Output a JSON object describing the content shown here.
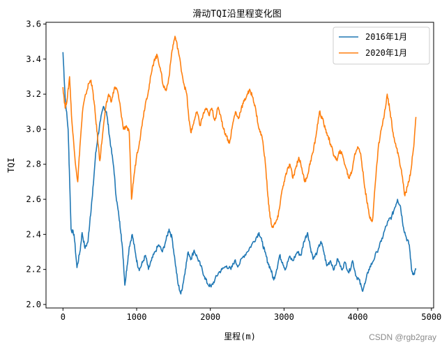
{
  "chart_data": {
    "type": "line",
    "title": "滑动TQI沿里程变化图",
    "xlabel": "里程(m)",
    "ylabel": "TQI",
    "xlim": [
      -230,
      5030
    ],
    "ylim": [
      1.98,
      3.61
    ],
    "xticks": [
      0,
      1000,
      2000,
      3000,
      4000,
      5000
    ],
    "yticks": [
      2.0,
      2.2,
      2.4,
      2.6,
      2.8,
      3.0,
      3.2,
      3.4,
      3.6
    ],
    "ytick_labels": [
      "2.0",
      "2.2",
      "2.4",
      "2.6",
      "2.8",
      "3.0",
      "3.2",
      "3.4",
      "3.6"
    ],
    "grid": false,
    "legend_position": "upper right",
    "series": [
      {
        "name": "2016年1月",
        "color": "#1f77b4",
        "points": [
          [
            0,
            3.44
          ],
          [
            30,
            3.18
          ],
          [
            70,
            3.0
          ],
          [
            90,
            2.72
          ],
          [
            110,
            2.43
          ],
          [
            150,
            2.4
          ],
          [
            190,
            2.21
          ],
          [
            230,
            2.3
          ],
          [
            260,
            2.41
          ],
          [
            300,
            2.32
          ],
          [
            340,
            2.36
          ],
          [
            370,
            2.5
          ],
          [
            400,
            2.62
          ],
          [
            440,
            2.84
          ],
          [
            470,
            2.95
          ],
          [
            510,
            3.05
          ],
          [
            550,
            3.13
          ],
          [
            590,
            3.1
          ],
          [
            620,
            3.0
          ],
          [
            650,
            2.9
          ],
          [
            690,
            2.78
          ],
          [
            720,
            2.62
          ],
          [
            760,
            2.5
          ],
          [
            790,
            2.4
          ],
          [
            820,
            2.25
          ],
          [
            840,
            2.11
          ],
          [
            870,
            2.22
          ],
          [
            900,
            2.33
          ],
          [
            940,
            2.4
          ],
          [
            980,
            2.3
          ],
          [
            1010,
            2.23
          ],
          [
            1040,
            2.2
          ],
          [
            1080,
            2.24
          ],
          [
            1120,
            2.28
          ],
          [
            1160,
            2.2
          ],
          [
            1200,
            2.25
          ],
          [
            1250,
            2.3
          ],
          [
            1300,
            2.34
          ],
          [
            1350,
            2.3
          ],
          [
            1400,
            2.37
          ],
          [
            1440,
            2.43
          ],
          [
            1480,
            2.38
          ],
          [
            1520,
            2.25
          ],
          [
            1560,
            2.12
          ],
          [
            1600,
            2.06
          ],
          [
            1630,
            2.12
          ],
          [
            1660,
            2.2
          ],
          [
            1700,
            2.3
          ],
          [
            1740,
            2.26
          ],
          [
            1780,
            2.31
          ],
          [
            1830,
            2.26
          ],
          [
            1870,
            2.22
          ],
          [
            1920,
            2.16
          ],
          [
            1960,
            2.12
          ],
          [
            2010,
            2.1
          ],
          [
            2060,
            2.14
          ],
          [
            2110,
            2.18
          ],
          [
            2160,
            2.2
          ],
          [
            2220,
            2.22
          ],
          [
            2280,
            2.2
          ],
          [
            2330,
            2.25
          ],
          [
            2380,
            2.22
          ],
          [
            2440,
            2.27
          ],
          [
            2500,
            2.3
          ],
          [
            2560,
            2.34
          ],
          [
            2620,
            2.38
          ],
          [
            2660,
            2.41
          ],
          [
            2700,
            2.36
          ],
          [
            2740,
            2.3
          ],
          [
            2780,
            2.24
          ],
          [
            2820,
            2.2
          ],
          [
            2860,
            2.14
          ],
          [
            2900,
            2.2
          ],
          [
            2940,
            2.28
          ],
          [
            2980,
            2.24
          ],
          [
            3020,
            2.2
          ],
          [
            3070,
            2.27
          ],
          [
            3120,
            2.25
          ],
          [
            3180,
            2.3
          ],
          [
            3230,
            2.28
          ],
          [
            3270,
            2.36
          ],
          [
            3320,
            2.41
          ],
          [
            3360,
            2.32
          ],
          [
            3400,
            2.26
          ],
          [
            3450,
            2.3
          ],
          [
            3500,
            2.36
          ],
          [
            3540,
            2.3
          ],
          [
            3580,
            2.22
          ],
          [
            3630,
            2.25
          ],
          [
            3680,
            2.2
          ],
          [
            3730,
            2.26
          ],
          [
            3780,
            2.2
          ],
          [
            3830,
            2.24
          ],
          [
            3880,
            2.18
          ],
          [
            3930,
            2.25
          ],
          [
            3980,
            2.16
          ],
          [
            4020,
            2.14
          ],
          [
            4060,
            2.08
          ],
          [
            4100,
            2.12
          ],
          [
            4150,
            2.2
          ],
          [
            4200,
            2.24
          ],
          [
            4260,
            2.3
          ],
          [
            4320,
            2.36
          ],
          [
            4370,
            2.43
          ],
          [
            4420,
            2.48
          ],
          [
            4460,
            2.5
          ],
          [
            4500,
            2.55
          ],
          [
            4540,
            2.6
          ],
          [
            4580,
            2.56
          ],
          [
            4620,
            2.44
          ],
          [
            4660,
            2.38
          ],
          [
            4700,
            2.34
          ],
          [
            4730,
            2.2
          ],
          [
            4760,
            2.17
          ],
          [
            4790,
            2.2
          ]
        ]
      },
      {
        "name": "2020年1月",
        "color": "#ff7f0e",
        "points": [
          [
            0,
            3.24
          ],
          [
            30,
            3.12
          ],
          [
            60,
            3.18
          ],
          [
            90,
            3.3
          ],
          [
            120,
            3.05
          ],
          [
            160,
            2.85
          ],
          [
            200,
            2.7
          ],
          [
            230,
            2.9
          ],
          [
            270,
            3.12
          ],
          [
            310,
            3.2
          ],
          [
            350,
            3.26
          ],
          [
            380,
            3.28
          ],
          [
            410,
            3.2
          ],
          [
            440,
            3.08
          ],
          [
            470,
            2.95
          ],
          [
            500,
            2.82
          ],
          [
            540,
            2.98
          ],
          [
            580,
            3.12
          ],
          [
            620,
            3.2
          ],
          [
            660,
            3.16
          ],
          [
            700,
            3.24
          ],
          [
            740,
            3.22
          ],
          [
            780,
            3.12
          ],
          [
            820,
            3.0
          ],
          [
            860,
            3.02
          ],
          [
            900,
            2.98
          ],
          [
            930,
            2.6
          ],
          [
            960,
            2.72
          ],
          [
            1000,
            2.85
          ],
          [
            1040,
            2.93
          ],
          [
            1080,
            3.05
          ],
          [
            1120,
            3.15
          ],
          [
            1160,
            3.22
          ],
          [
            1200,
            3.32
          ],
          [
            1240,
            3.4
          ],
          [
            1280,
            3.42
          ],
          [
            1320,
            3.35
          ],
          [
            1360,
            3.25
          ],
          [
            1400,
            3.22
          ],
          [
            1440,
            3.3
          ],
          [
            1480,
            3.45
          ],
          [
            1520,
            3.53
          ],
          [
            1560,
            3.46
          ],
          [
            1600,
            3.36
          ],
          [
            1640,
            3.26
          ],
          [
            1680,
            3.2
          ],
          [
            1710,
            3.05
          ],
          [
            1740,
            2.98
          ],
          [
            1780,
            3.05
          ],
          [
            1820,
            3.1
          ],
          [
            1860,
            3.02
          ],
          [
            1900,
            3.08
          ],
          [
            1940,
            3.12
          ],
          [
            1980,
            3.08
          ],
          [
            2020,
            3.12
          ],
          [
            2060,
            3.05
          ],
          [
            2100,
            3.12
          ],
          [
            2140,
            3.08
          ],
          [
            2180,
            3.0
          ],
          [
            2220,
            2.96
          ],
          [
            2260,
            2.92
          ],
          [
            2300,
            3.02
          ],
          [
            2340,
            3.1
          ],
          [
            2380,
            3.06
          ],
          [
            2420,
            3.12
          ],
          [
            2460,
            3.16
          ],
          [
            2500,
            3.2
          ],
          [
            2540,
            3.22
          ],
          [
            2580,
            3.18
          ],
          [
            2620,
            3.1
          ],
          [
            2660,
            3.0
          ],
          [
            2700,
            2.96
          ],
          [
            2740,
            2.84
          ],
          [
            2780,
            2.62
          ],
          [
            2810,
            2.5
          ],
          [
            2840,
            2.44
          ],
          [
            2880,
            2.46
          ],
          [
            2920,
            2.5
          ],
          [
            2960,
            2.62
          ],
          [
            3000,
            2.7
          ],
          [
            3040,
            2.76
          ],
          [
            3080,
            2.8
          ],
          [
            3120,
            2.72
          ],
          [
            3160,
            2.78
          ],
          [
            3200,
            2.84
          ],
          [
            3240,
            2.78
          ],
          [
            3280,
            2.7
          ],
          [
            3320,
            2.74
          ],
          [
            3360,
            2.82
          ],
          [
            3400,
            2.88
          ],
          [
            3440,
            2.98
          ],
          [
            3480,
            3.1
          ],
          [
            3520,
            3.06
          ],
          [
            3560,
            3.0
          ],
          [
            3600,
            2.96
          ],
          [
            3640,
            2.9
          ],
          [
            3680,
            2.85
          ],
          [
            3720,
            2.82
          ],
          [
            3760,
            2.88
          ],
          [
            3800,
            2.84
          ],
          [
            3840,
            2.78
          ],
          [
            3880,
            2.72
          ],
          [
            3920,
            2.76
          ],
          [
            3960,
            2.86
          ],
          [
            4000,
            2.9
          ],
          [
            4040,
            2.86
          ],
          [
            4080,
            2.72
          ],
          [
            4120,
            2.6
          ],
          [
            4160,
            2.5
          ],
          [
            4200,
            2.48
          ],
          [
            4240,
            2.7
          ],
          [
            4280,
            2.9
          ],
          [
            4320,
            3.0
          ],
          [
            4360,
            3.08
          ],
          [
            4400,
            3.2
          ],
          [
            4440,
            3.1
          ],
          [
            4480,
            2.98
          ],
          [
            4520,
            2.9
          ],
          [
            4560,
            2.84
          ],
          [
            4600,
            2.74
          ],
          [
            4640,
            2.62
          ],
          [
            4680,
            2.68
          ],
          [
            4720,
            2.76
          ],
          [
            4760,
            2.9
          ],
          [
            4790,
            3.07
          ]
        ]
      }
    ]
  },
  "watermark": "CSDN @rgb2gray"
}
